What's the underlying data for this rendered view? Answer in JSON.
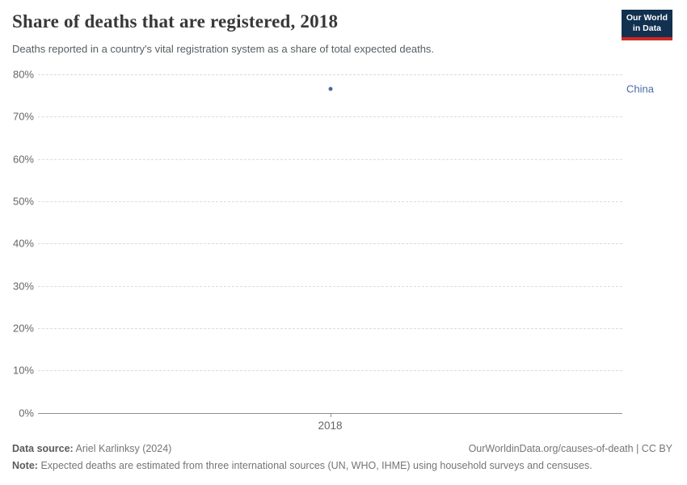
{
  "header": {
    "title": "Share of deaths that are registered, 2018",
    "subtitle": "Deaths reported in a country's vital registration system as a share of total expected deaths."
  },
  "logo": {
    "line1": "Our World",
    "line2": "in Data",
    "bg_color": "#12304f",
    "stripe_color": "#cc2a22"
  },
  "chart_data": {
    "type": "scatter",
    "title": "Share of deaths that are registered, 2018",
    "x": [
      2018
    ],
    "xticks": [
      "2018"
    ],
    "series": [
      {
        "name": "China",
        "values": [
          76.5
        ],
        "point_color": "#4c6a9c",
        "label_color": "#4a6ba8"
      }
    ],
    "ylim": [
      0,
      80
    ],
    "yticks": [
      0,
      10,
      20,
      30,
      40,
      50,
      60,
      70,
      80
    ],
    "ytick_suffix": "%",
    "grid": "horizontal dashed, solid zero baseline",
    "legend": "entity label at right of point"
  },
  "footer": {
    "data_source_label": "Data source:",
    "data_source_value": "Ariel Karlinksy (2024)",
    "right_text": "OurWorldinData.org/causes-of-death | CC BY",
    "note_label": "Note:",
    "note_value": "Expected deaths are estimated from three international sources (UN, WHO, IHME) using household surveys and censuses."
  }
}
